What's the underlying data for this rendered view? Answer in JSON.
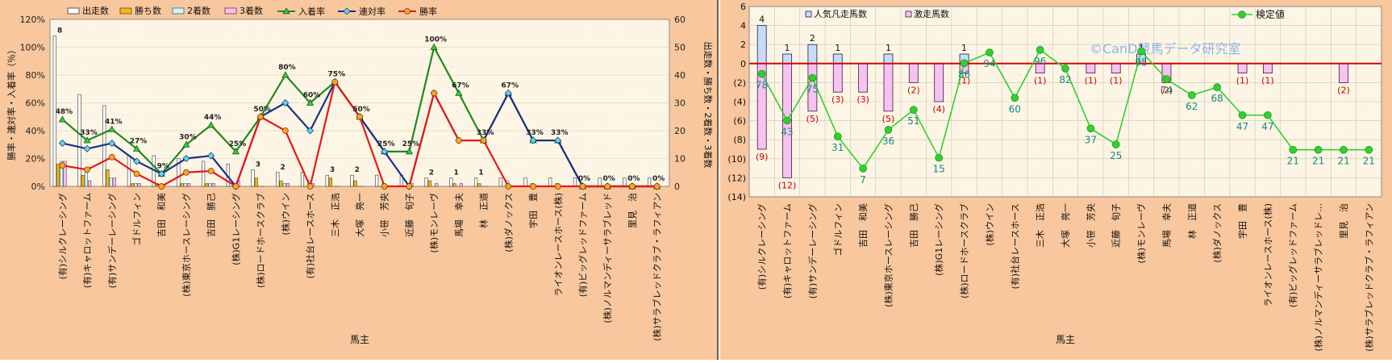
{
  "chart_data": [
    {
      "type": "bar",
      "xlabel": "馬主",
      "ylabel": "勝率・連対率・入着率（％）",
      "y2label": "出走数・勝ち数・2着数・3着数",
      "ylim": [
        0,
        120
      ],
      "y2lim": [
        0,
        60
      ],
      "yticks": [
        "0%",
        "20%",
        "40%",
        "60%",
        "80%",
        "100%",
        "120%"
      ],
      "y2ticks": [
        "0",
        "10",
        "20",
        "30",
        "40",
        "50",
        "60"
      ],
      "legend": [
        "出走数",
        "勝ち数",
        "2着数",
        "3着数",
        "入着率",
        "連対率",
        "勝率"
      ],
      "legend_position": "top",
      "categories": [
        "(有)シルクレーシング",
        "(有)キャロットファーム",
        "(有)サンデーレーシング",
        "ゴドルフィン",
        "吉田　和美",
        "(株)東京ホースレーシング",
        "吉田　勝己",
        "(株)G1レーシング",
        "(株)ロードホースクラブ",
        "(株)ウイン",
        "(有)社台レースホース",
        "三木　正浩",
        "大塚　亮一",
        "小笹　芳央",
        "近藤　旬子",
        "(株)モンレーヴ",
        "馬場　幸夫",
        "林　正道",
        "(株)ダノックス",
        "宇田　豊",
        "ライオンレースホース(株)",
        "(有)ビッグレッドファーム",
        "(株)ノルマンディーサラブレッド",
        "里見　治",
        "(株)サラブレッドクラブ・ラフィアン"
      ],
      "series": [
        {
          "name": "出走数",
          "kind": "bar",
          "axis": "right",
          "values": [
            54,
            33,
            29,
            11,
            11,
            10,
            9,
            8,
            6,
            5,
            5,
            4,
            4,
            4,
            4,
            3,
            3,
            3,
            3,
            3,
            3,
            3,
            3,
            3,
            3
          ]
        },
        {
          "name": "勝ち数",
          "kind": "bar",
          "axis": "right",
          "values": [
            8,
            4,
            6,
            1,
            1,
            1,
            1,
            0,
            3,
            2,
            0,
            3,
            2,
            0,
            0,
            2,
            1,
            1,
            0,
            0,
            0,
            0,
            0,
            0,
            0
          ]
        },
        {
          "name": "2着数",
          "kind": "bar",
          "axis": "right",
          "values": [
            9,
            5,
            3,
            1,
            0,
            1,
            1,
            0,
            0,
            1,
            2,
            0,
            0,
            1,
            0,
            0,
            0,
            0,
            2,
            1,
            1,
            0,
            0,
            0,
            0
          ]
        },
        {
          "name": "3着数",
          "kind": "bar",
          "axis": "right",
          "values": [
            9,
            2,
            3,
            1,
            0,
            1,
            1,
            2,
            0,
            1,
            1,
            0,
            0,
            0,
            1,
            1,
            1,
            0,
            0,
            0,
            0,
            0,
            0,
            0,
            0
          ]
        },
        {
          "name": "入着率",
          "kind": "line",
          "axis": "left",
          "values": [
            48,
            33,
            41,
            27,
            9,
            30,
            44,
            25,
            50,
            80,
            60,
            75,
            50,
            25,
            25,
            100,
            67,
            33,
            67,
            33,
            33,
            0,
            0,
            0,
            0
          ]
        },
        {
          "name": "連対率",
          "kind": "line",
          "axis": "left",
          "values": [
            31,
            27,
            31,
            18,
            9,
            20,
            22,
            0,
            50,
            60,
            40,
            75,
            50,
            25,
            0,
            67,
            33,
            33,
            67,
            33,
            33,
            0,
            0,
            0,
            0
          ]
        },
        {
          "name": "勝率",
          "kind": "line",
          "axis": "left",
          "values": [
            15,
            12,
            21,
            9,
            0,
            10,
            11,
            0,
            50,
            40,
            0,
            75,
            50,
            0,
            0,
            67,
            33,
            33,
            0,
            0,
            0,
            0,
            0,
            0,
            0
          ]
        }
      ],
      "point_labels": [
        "48%",
        "33%",
        "41%",
        "27%",
        "9%",
        "30%",
        "44%",
        "25%",
        "50%",
        "80%",
        "60%",
        "75%",
        "50%",
        "25%",
        "25%",
        "100%",
        "67%",
        "33%",
        "67%",
        "33%",
        "33%",
        "0%",
        "0%",
        "0%",
        "0%"
      ],
      "bar_labels": [
        "8",
        "",
        "",
        "",
        "",
        "",
        "",
        "",
        "3",
        "2",
        "",
        "3",
        "2",
        "",
        "",
        "2",
        "1",
        "1",
        "",
        "",
        "",
        "",
        "",
        "",
        ""
      ]
    },
    {
      "type": "bar",
      "xlabel": "馬主",
      "ylim": [
        -14,
        6
      ],
      "yticks": [
        "6",
        "4",
        "2",
        "0",
        "(2)",
        "(4)",
        "(6)",
        "(8)",
        "(10)",
        "(12)",
        "(14)"
      ],
      "legend": [
        "人気凡走馬数",
        "激走馬数",
        "検定値"
      ],
      "watermark": "©CanD競馬データ研究室",
      "categories": [
        "(有)シルクレーシング",
        "(有)キャロットファーム",
        "(有)サンデーレーシング",
        "ゴドルフィン",
        "吉田　和美",
        "(株)東京ホースレーシング",
        "吉田　勝己",
        "(株)G1レーシング",
        "(株)ロードホースクラブ",
        "(株)ウイン",
        "(有)社台レースホース",
        "三木　正浩",
        "大塚　亮一",
        "小笹　芳央",
        "近藤　旬子",
        "(株)モンレーヴ",
        "馬場　幸夫",
        "林　正道",
        "(株)ダノックス",
        "宇田　豊",
        "ライオンレースホース(株)",
        "(有)ビッグレッドファーム",
        "(株)ノルマンディーサラブレッドレ…",
        "里見　治",
        "(株)サラブレッドクラブ・ラフィアン"
      ],
      "series": [
        {
          "name": "人気凡走馬数",
          "kind": "bar",
          "values": [
            -9,
            -12,
            -5,
            -3,
            -3,
            -5,
            -2,
            -4,
            -1,
            0,
            0,
            -1,
            0,
            -1,
            -1,
            0,
            -2,
            0,
            0,
            -1,
            -1,
            0,
            0,
            -2,
            0
          ]
        },
        {
          "name": "激走馬数",
          "kind": "bar",
          "values": [
            4,
            1,
            2,
            1,
            0,
            1,
            0,
            0,
            1,
            0,
            0,
            0,
            0,
            0,
            0,
            1,
            0,
            0,
            0,
            0,
            0,
            0,
            0,
            0,
            0
          ]
        },
        {
          "name": "検定値",
          "kind": "line",
          "values": [
            78,
            43,
            75,
            31,
            7,
            36,
            51,
            15,
            86,
            94,
            60,
            96,
            82,
            37,
            25,
            95,
            74,
            62,
            68,
            47,
            47,
            21,
            21,
            21,
            21
          ]
        }
      ],
      "pos_labels": [
        "4",
        "1",
        "2",
        "1",
        "",
        "1",
        "",
        "",
        "1",
        "",
        "",
        "",
        "",
        "",
        "",
        "1",
        "",
        "",
        "",
        "",
        "",
        "",
        "",
        "",
        ""
      ],
      "neg_labels": [
        "(9)",
        "(12)",
        "(5)",
        "(3)",
        "(3)",
        "(5)",
        "(2)",
        "(4)",
        "(1)",
        "",
        "",
        "(1)",
        "",
        "(1)",
        "(1)",
        "",
        "(2)",
        "",
        "",
        "(1)",
        "(1)",
        "",
        "",
        "(2)",
        ""
      ]
    }
  ]
}
